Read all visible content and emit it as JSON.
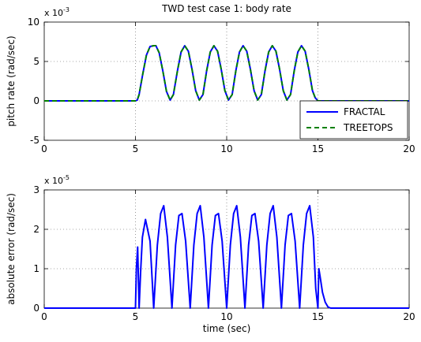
{
  "chart_data": [
    {
      "type": "line",
      "title": "TWD test case 1: body rate",
      "xlabel": "",
      "ylabel": "pitch rate (rad/sec)",
      "xlim": [
        0,
        20
      ],
      "ylim": [
        -0.005,
        0.01
      ],
      "x_ticks": [
        "0",
        "5",
        "10",
        "15",
        "20"
      ],
      "y_ticks": [
        "-5",
        "0",
        "5",
        "10"
      ],
      "y_exponent_base": "x 10",
      "y_exponent_power": "-3",
      "grid": true,
      "legend": {
        "placement": "bottom-right",
        "entries": [
          "FRACTAL",
          "TREETOPS"
        ]
      },
      "colors": {
        "FRACTAL": "#0000ff",
        "TREETOPS": "#008000"
      },
      "series": [
        {
          "name": "FRACTAL",
          "style": "solid",
          "x": [
            0,
            5.0,
            5.1,
            5.2,
            5.4,
            5.6,
            5.8,
            6.0,
            6.12,
            6.3,
            6.5,
            6.7,
            6.9,
            7.08,
            7.3,
            7.5,
            7.7,
            7.9,
            8.1,
            8.3,
            8.5,
            8.7,
            8.9,
            9.1,
            9.3,
            9.5,
            9.7,
            9.9,
            10.1,
            10.3,
            10.5,
            10.7,
            10.9,
            11.1,
            11.3,
            11.5,
            11.7,
            11.9,
            12.1,
            12.3,
            12.5,
            12.7,
            12.9,
            13.1,
            13.3,
            13.5,
            13.7,
            13.9,
            14.1,
            14.3,
            14.5,
            14.7,
            14.85,
            15.0,
            20
          ],
          "y": [
            0,
            0,
            0.0001,
            0.0008,
            0.0034,
            0.0058,
            0.0069,
            0.007,
            0.007,
            0.0061,
            0.0038,
            0.0012,
            0.0001,
            0.0008,
            0.0038,
            0.0062,
            0.007,
            0.0063,
            0.004,
            0.0013,
            0.0001,
            0.0008,
            0.0038,
            0.0062,
            0.007,
            0.0063,
            0.004,
            0.0013,
            0.0001,
            0.0008,
            0.0038,
            0.0062,
            0.007,
            0.0063,
            0.004,
            0.0013,
            0.0001,
            0.0008,
            0.0038,
            0.0062,
            0.007,
            0.0063,
            0.004,
            0.0013,
            0.0001,
            0.0008,
            0.0038,
            0.0062,
            0.007,
            0.0063,
            0.004,
            0.0013,
            0.0004,
            0,
            0
          ]
        },
        {
          "name": "TREETOPS",
          "style": "dashed",
          "x": [
            0,
            5.0,
            5.1,
            5.2,
            5.4,
            5.6,
            5.8,
            6.0,
            6.12,
            6.3,
            6.5,
            6.7,
            6.9,
            7.08,
            7.3,
            7.5,
            7.7,
            7.9,
            8.1,
            8.3,
            8.5,
            8.7,
            8.9,
            9.1,
            9.3,
            9.5,
            9.7,
            9.9,
            10.1,
            10.3,
            10.5,
            10.7,
            10.9,
            11.1,
            11.3,
            11.5,
            11.7,
            11.9,
            12.1,
            12.3,
            12.5,
            12.7,
            12.9,
            13.1,
            13.3,
            13.5,
            13.7,
            13.9,
            14.1,
            14.3,
            14.5,
            14.7,
            14.85,
            15.0,
            20
          ],
          "y": [
            0,
            0,
            0.0001,
            0.0008,
            0.0034,
            0.0058,
            0.0069,
            0.007,
            0.007,
            0.0061,
            0.0038,
            0.0012,
            0.0001,
            0.0008,
            0.0038,
            0.0062,
            0.007,
            0.0063,
            0.004,
            0.0013,
            0.0001,
            0.0008,
            0.0038,
            0.0062,
            0.007,
            0.0063,
            0.004,
            0.0013,
            0.0001,
            0.0008,
            0.0038,
            0.0062,
            0.007,
            0.0063,
            0.004,
            0.0013,
            0.0001,
            0.0008,
            0.0038,
            0.0062,
            0.007,
            0.0063,
            0.004,
            0.0013,
            0.0001,
            0.0008,
            0.0038,
            0.0062,
            0.007,
            0.0063,
            0.004,
            0.0013,
            0.0004,
            0,
            0
          ]
        }
      ]
    },
    {
      "type": "line",
      "title": "",
      "xlabel": "time (sec)",
      "ylabel": "absolute error (rad/sec)",
      "xlim": [
        0,
        20
      ],
      "ylim": [
        0,
        3e-05
      ],
      "x_ticks": [
        "0",
        "5",
        "10",
        "15",
        "20"
      ],
      "y_ticks": [
        "0",
        "1",
        "2",
        "3"
      ],
      "y_exponent_base": "x 10",
      "y_exponent_power": "-5",
      "grid": true,
      "colors": {
        "error": "#0000ff"
      },
      "series": [
        {
          "style": "solid",
          "x": [
            0,
            5.0,
            5.05,
            5.12,
            5.2,
            5.28,
            5.38,
            5.55,
            5.8,
            6.0,
            6.2,
            6.38,
            6.55,
            6.75,
            7.0,
            7.2,
            7.38,
            7.55,
            7.75,
            8.0,
            8.2,
            8.38,
            8.55,
            8.75,
            9.0,
            9.2,
            9.38,
            9.55,
            9.75,
            10.0,
            10.2,
            10.38,
            10.55,
            10.75,
            11.0,
            11.2,
            11.38,
            11.55,
            11.75,
            12.0,
            12.2,
            12.38,
            12.55,
            12.75,
            13.0,
            13.2,
            13.38,
            13.55,
            13.75,
            14.0,
            14.2,
            14.38,
            14.55,
            14.75,
            14.88,
            15.0,
            15.05,
            15.12,
            15.25,
            15.4,
            15.55,
            15.7,
            20
          ],
          "y": [
            0,
            0,
            1e-05,
            1.55e-05,
            0,
            9e-06,
            1.8e-05,
            2.25e-05,
            1.7e-05,
            0,
            1.6e-05,
            2.4e-05,
            2.6e-05,
            1.8e-05,
            0,
            1.6e-05,
            2.35e-05,
            2.4e-05,
            1.7e-05,
            0,
            1.6e-05,
            2.4e-05,
            2.6e-05,
            1.8e-05,
            0,
            1.6e-05,
            2.35e-05,
            2.4e-05,
            1.7e-05,
            0,
            1.6e-05,
            2.4e-05,
            2.6e-05,
            1.8e-05,
            0,
            1.6e-05,
            2.35e-05,
            2.4e-05,
            1.7e-05,
            0,
            1.6e-05,
            2.4e-05,
            2.6e-05,
            1.8e-05,
            0,
            1.6e-05,
            2.35e-05,
            2.4e-05,
            1.7e-05,
            0,
            1.6e-05,
            2.4e-05,
            2.6e-05,
            1.8e-05,
            5e-06,
            0,
            1e-05,
            8e-06,
            4e-06,
            1.5e-06,
            3e-07,
            0,
            0
          ]
        }
      ]
    }
  ]
}
